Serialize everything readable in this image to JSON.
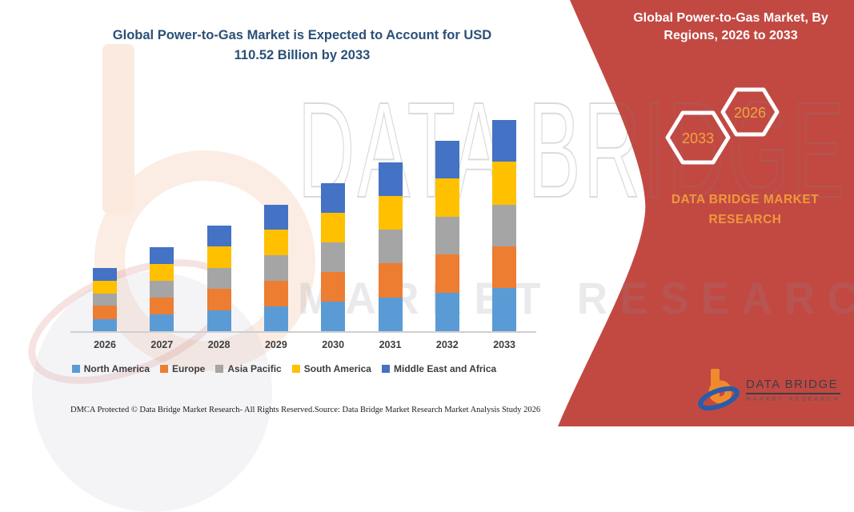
{
  "title": {
    "line1": "Global Power-to-Gas Market is Expected to Account for USD",
    "line2": "110.52 Billion by 2033",
    "color": "#2b5077"
  },
  "banner": {
    "background_color": "#c24942",
    "title_line1": "Global Power-to-Gas Market, By",
    "title_line2": "Regions, 2026 to 2033",
    "hexagons": [
      {
        "label": "2033"
      },
      {
        "label": "2026"
      }
    ],
    "hexagon_text_color": "#f2a43e",
    "brand_line1": "DATA BRIDGE MARKET",
    "brand_line2": "RESEARCH",
    "brand_text_color": "#f0983c"
  },
  "logo": {
    "name": "DATA BRIDGE",
    "subtitle": "MARKET RESEARCH"
  },
  "watermark": {
    "line1": "DATA BRIDGE",
    "line2": "MARKET RESEARCH"
  },
  "footer": {
    "left": "DMCA Protected © Data Bridge Market Research-  All Rights Reserved.",
    "right": "Source: Data Bridge Market Research  Market Analysis Study 2026"
  },
  "chart_data": {
    "type": "bar",
    "stacked": true,
    "title": "Global Power-to-Gas Market is Expected to Account for USD 110.52 Billion by 2033",
    "categories": [
      "2026",
      "2027",
      "2028",
      "2029",
      "2030",
      "2031",
      "2032",
      "2033"
    ],
    "series": [
      {
        "name": "North America",
        "color": "#5b9bd5",
        "values": [
          6.9,
          9.0,
          11.3,
          13.5,
          15.8,
          18.0,
          20.3,
          22.9
        ]
      },
      {
        "name": "Europe",
        "color": "#ed7d31",
        "values": [
          6.8,
          8.9,
          11.2,
          13.4,
          15.6,
          17.8,
          20.0,
          21.8
        ]
      },
      {
        "name": "Asia Pacific",
        "color": "#a5a5a5",
        "values": [
          6.5,
          8.8,
          11.0,
          13.2,
          15.4,
          17.6,
          19.8,
          21.5
        ]
      },
      {
        "name": "South America",
        "color": "#ffc000",
        "values": [
          6.7,
          8.9,
          11.1,
          13.3,
          15.5,
          17.7,
          19.9,
          22.6
        ]
      },
      {
        "name": "Middle East and Africa",
        "color": "#4472c4",
        "values": [
          6.5,
          8.7,
          10.9,
          13.1,
          15.3,
          17.5,
          19.7,
          21.7
        ]
      }
    ],
    "totals": [
      33.4,
      44.3,
      55.5,
      66.5,
      77.6,
      88.6,
      99.7,
      110.52
    ],
    "value_2033_total": 110.52,
    "xlabel": "",
    "ylabel": "",
    "ylim": [
      0,
      115
    ],
    "grid": false,
    "legend_position": "bottom"
  }
}
